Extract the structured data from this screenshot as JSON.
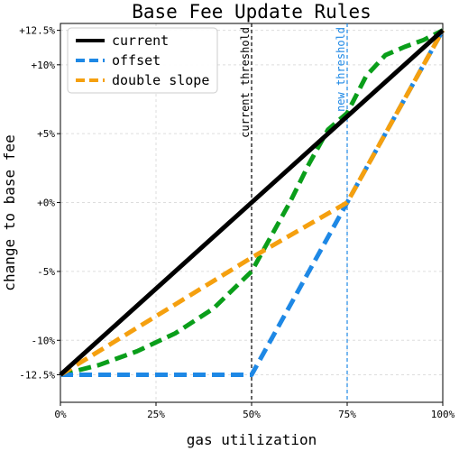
{
  "chart_data": {
    "type": "line",
    "title": "Base Fee Update Rules",
    "xlabel": "gas utilization",
    "ylabel": "change to base fee",
    "xlim": [
      0,
      100
    ],
    "ylim": [
      -14.5,
      13
    ],
    "x_ticks": [
      {
        "value": 0,
        "label": "0%"
      },
      {
        "value": 25,
        "label": "25%"
      },
      {
        "value": 50,
        "label": "50%"
      },
      {
        "value": 75,
        "label": "75%"
      },
      {
        "value": 100,
        "label": "100%"
      }
    ],
    "y_ticks": [
      {
        "value": -12.5,
        "label": "-12.5%"
      },
      {
        "value": -10,
        "label": "-10%"
      },
      {
        "value": -5,
        "label": "-5%"
      },
      {
        "value": 0,
        "label": "+0%"
      },
      {
        "value": 5,
        "label": "+5%"
      },
      {
        "value": 10,
        "label": "+10%"
      },
      {
        "value": 12.5,
        "label": "+12.5%"
      }
    ],
    "grid": true,
    "legend_position": "top-left",
    "series": [
      {
        "name": "current",
        "color": "#000000",
        "dash": "solid",
        "x": [
          0,
          100
        ],
        "y": [
          -12.5,
          12.5
        ]
      },
      {
        "name": "offset",
        "color": "#1e88e5",
        "dash": "dashed",
        "x": [
          0,
          50,
          75,
          100
        ],
        "y": [
          -12.5,
          -12.5,
          0,
          12.5
        ]
      },
      {
        "name": "double slope",
        "color": "#f5a00f",
        "dash": "dashed",
        "x": [
          0,
          50,
          75,
          100
        ],
        "y": [
          -12.5,
          -4,
          0,
          12.5
        ]
      },
      {
        "name": "",
        "color": "#0a9e1a",
        "dash": "dashed",
        "x": [
          0,
          10,
          20,
          30,
          40,
          50,
          55,
          60,
          65,
          70,
          75,
          80,
          85,
          90,
          95,
          100
        ],
        "y": [
          -12.5,
          -11.8,
          -10.8,
          -9.5,
          -7.7,
          -5,
          -2.5,
          0,
          2.8,
          5.3,
          6.5,
          9.2,
          10.7,
          11.3,
          11.8,
          12.5
        ]
      }
    ],
    "annotations": [
      {
        "x": 50,
        "text": "current threshold",
        "color": "#000000"
      },
      {
        "x": 75,
        "text": "new threshold",
        "color": "#1e88e5"
      }
    ]
  }
}
